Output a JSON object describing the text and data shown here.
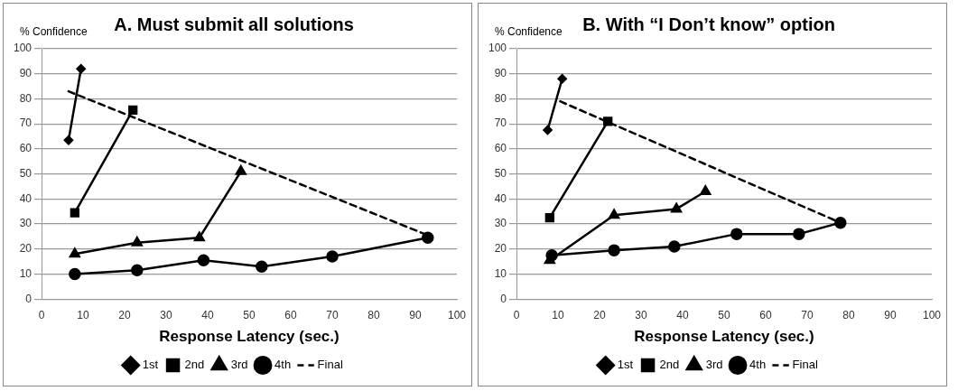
{
  "chart_data": [
    {
      "type": "line",
      "title": "A. Must submit all solutions",
      "ylabel": "% Confidence",
      "xlabel": "Response Latency (sec.)",
      "xlim": [
        0,
        100
      ],
      "xticks": [
        0,
        10,
        20,
        30,
        40,
        50,
        60,
        70,
        80,
        90,
        100
      ],
      "ylim": [
        0,
        100
      ],
      "yticks": [
        0,
        10,
        20,
        30,
        40,
        50,
        60,
        70,
        80,
        90,
        100
      ],
      "grid": "y",
      "legend": "bottom",
      "series": [
        {
          "name": "1st",
          "color": "#000000",
          "marker": "diamond",
          "x": [
            6.5,
            9.5
          ],
          "values": [
            63.5,
            92
          ]
        },
        {
          "name": "2nd",
          "color": "#000000",
          "marker": "square",
          "x": [
            8,
            22
          ],
          "values": [
            34.5,
            75.5
          ]
        },
        {
          "name": "3rd",
          "color": "#000000",
          "marker": "triangle",
          "x": [
            8,
            23,
            38,
            48
          ],
          "values": [
            18,
            22.5,
            24.5,
            51
          ]
        },
        {
          "name": "4th",
          "color": "#000000",
          "marker": "circle",
          "x": [
            8,
            23,
            39,
            53,
            70,
            93
          ],
          "values": [
            10,
            11.5,
            15.5,
            13,
            17,
            24.5
          ]
        },
        {
          "name": "Final",
          "color": "#000000",
          "marker": "none",
          "line_style": "dashed",
          "x": [
            6.5,
            93
          ],
          "values": [
            83,
            25.5
          ]
        }
      ]
    },
    {
      "type": "line",
      "title": "B. With “I Don’t know” option",
      "ylabel": "% Confidence",
      "xlabel": "Response Latency (sec.)",
      "xlim": [
        0,
        100
      ],
      "xticks": [
        0,
        10,
        20,
        30,
        40,
        50,
        60,
        70,
        80,
        90,
        100
      ],
      "ylim": [
        0,
        100
      ],
      "yticks": [
        0,
        10,
        20,
        30,
        40,
        50,
        60,
        70,
        80,
        90,
        100
      ],
      "grid": "y",
      "legend": "bottom",
      "series": [
        {
          "name": "1st",
          "color": "#000000",
          "marker": "diamond",
          "x": [
            7.5,
            11
          ],
          "values": [
            67.5,
            88
          ]
        },
        {
          "name": "2nd",
          "color": "#000000",
          "marker": "square",
          "x": [
            8,
            22
          ],
          "values": [
            32.5,
            71
          ]
        },
        {
          "name": "3rd",
          "color": "#000000",
          "marker": "triangle",
          "x": [
            8,
            23.5,
            38.5,
            45.5
          ],
          "values": [
            15.5,
            33.5,
            36,
            43
          ]
        },
        {
          "name": "4th",
          "color": "#000000",
          "marker": "circle",
          "x": [
            8.5,
            23.5,
            38,
            53,
            68,
            78
          ],
          "values": [
            17.5,
            19.5,
            21,
            26,
            26,
            30.5
          ]
        },
        {
          "name": "Final",
          "color": "#000000",
          "marker": "none",
          "line_style": "dashed",
          "x": [
            10.5,
            78
          ],
          "values": [
            79,
            30.5
          ]
        }
      ]
    }
  ]
}
